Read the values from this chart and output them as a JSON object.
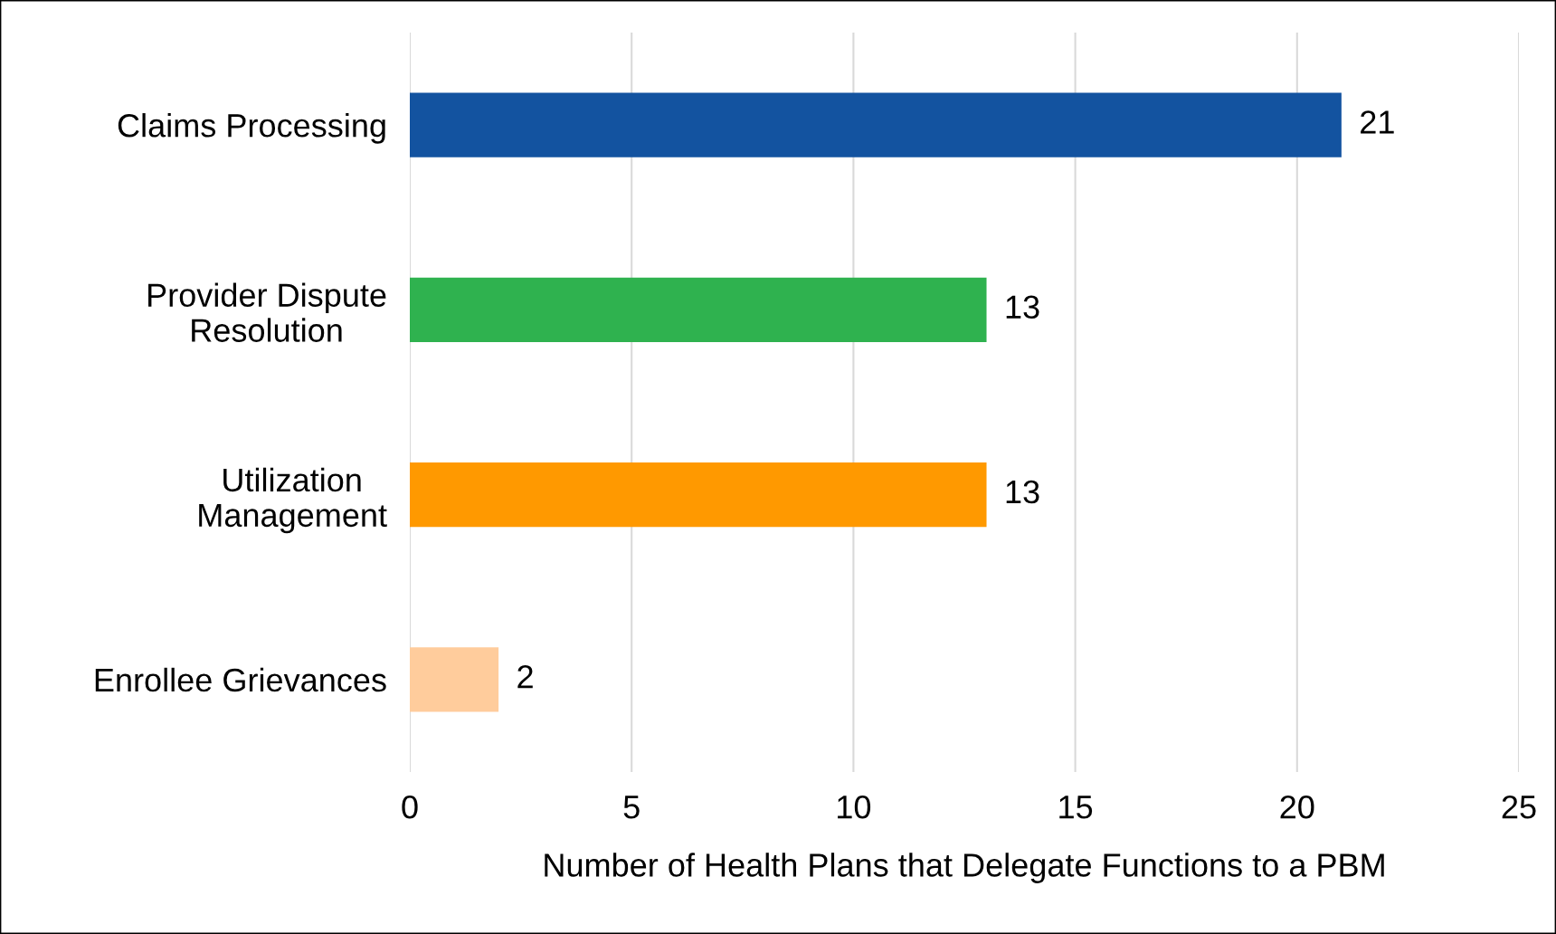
{
  "chart_data": {
    "type": "bar",
    "orientation": "horizontal",
    "categories": [
      "Claims Processing",
      "Provider Dispute\nResolution",
      "Utilization\nManagement",
      "Enrollee Grievances"
    ],
    "values": [
      21,
      13,
      13,
      2
    ],
    "colors": [
      "#1353a0",
      "#2fb24f",
      "#ff9900",
      "#ffcc9c"
    ],
    "xlabel": "Number of Health Plans that Delegate Functions to a PBM",
    "xlim": [
      0,
      25
    ],
    "xticks": [
      0,
      5,
      10,
      15,
      20,
      25
    ],
    "grid": "x",
    "data_labels": true,
    "legend": false
  }
}
